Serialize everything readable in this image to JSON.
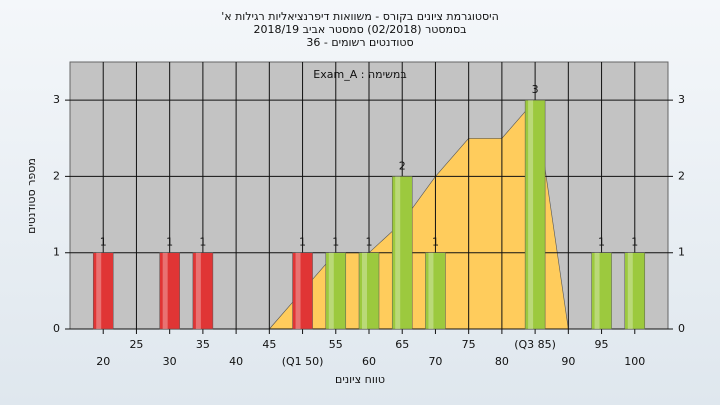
{
  "chart_data": {
    "type": "bar",
    "title": [
      "היסטוגרמת ציונים בקורס - משוואות דיפרנציאליות רגילות א'",
      "בסמסטר (02/2018) סמסטר אביב 2018/19",
      "סטודנטים רשומים - 36"
    ],
    "annotation": "במשימה : Exam_A",
    "y_label": "מספר סטודנטים",
    "x_label": "טווח ציונים",
    "x": [
      20,
      30,
      35,
      50,
      55,
      60,
      65,
      70,
      85,
      95,
      100
    ],
    "values": [
      1,
      1,
      1,
      1,
      1,
      1,
      2,
      1,
      3,
      1,
      1
    ],
    "colors": [
      "#e03535",
      "#e03535",
      "#e03535",
      "#e03535",
      "#9cc93e",
      "#9cc93e",
      "#9cc93e",
      "#9cc93e",
      "#9cc93e",
      "#9cc93e",
      "#9cc93e"
    ],
    "area": {
      "color": "#ffcc5c",
      "x": [
        45,
        50,
        55,
        60,
        65,
        70,
        75,
        80,
        85,
        90
      ],
      "values": [
        0,
        0.5,
        1,
        1,
        1.4,
        2,
        2.5,
        2.5,
        3,
        0
      ]
    },
    "xlim": [
      15,
      105
    ],
    "ylim": [
      0,
      3.5
    ],
    "xticks": [
      20,
      25,
      30,
      35,
      40,
      45,
      {
        "value": 50,
        "label": "(Q1 50)"
      },
      55,
      60,
      65,
      70,
      75,
      80,
      {
        "value": 85,
        "label": "(Q3 85)"
      },
      90,
      95,
      100
    ],
    "yticks": [
      0,
      1,
      2,
      3
    ],
    "grid": true
  }
}
